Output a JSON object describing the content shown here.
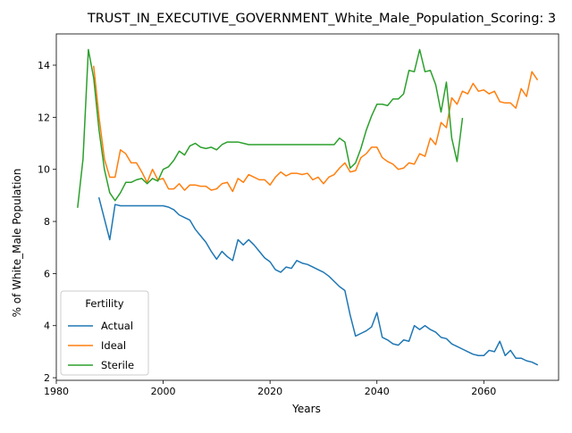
{
  "chart_data": {
    "type": "line",
    "title": "TRUST_IN_EXECUTIVE_GOVERNMENT_White_Male_Population_Scoring: 3",
    "xlabel": "Years",
    "ylabel": "% of White_Male Population",
    "xlim": [
      1980,
      2074
    ],
    "ylim": [
      1.9,
      15.2
    ],
    "xticks": [
      1980,
      2000,
      2020,
      2040,
      2060
    ],
    "yticks": [
      2,
      4,
      6,
      8,
      10,
      12,
      14
    ],
    "grid": false,
    "legend": {
      "title": "Fertility",
      "placement": "lower-left"
    },
    "series": [
      {
        "name": "Actual",
        "color": "#1f77b4",
        "x": [
          1988,
          1990,
          1991,
          1992,
          1994,
          1996,
          1998,
          2000,
          2001,
          2002,
          2003,
          2004,
          2005,
          2006,
          2007,
          2008,
          2009,
          2010,
          2011,
          2012,
          2013,
          2014,
          2015,
          2016,
          2017,
          2018,
          2019,
          2020,
          2021,
          2022,
          2023,
          2024,
          2025,
          2026,
          2027,
          2028,
          2029,
          2030,
          2031,
          2032,
          2033,
          2034,
          2035,
          2036,
          2037,
          2038,
          2039,
          2040,
          2041,
          2042,
          2043,
          2044,
          2045,
          2046,
          2047,
          2048,
          2049,
          2050,
          2051,
          2052,
          2053,
          2054,
          2055,
          2056,
          2057,
          2058,
          2059,
          2060,
          2061,
          2062,
          2063,
          2064,
          2065,
          2066,
          2067,
          2068,
          2069,
          2070
        ],
        "values": [
          8.9,
          7.3,
          8.65,
          8.6,
          8.6,
          8.6,
          8.6,
          8.6,
          8.55,
          8.45,
          8.25,
          8.15,
          8.05,
          7.7,
          7.45,
          7.2,
          6.85,
          6.55,
          6.85,
          6.65,
          6.5,
          7.3,
          7.1,
          7.3,
          7.1,
          6.85,
          6.6,
          6.45,
          6.15,
          6.05,
          6.25,
          6.2,
          6.5,
          6.4,
          6.35,
          6.25,
          6.15,
          6.05,
          5.9,
          5.7,
          5.5,
          5.35,
          4.4,
          3.6,
          3.7,
          3.8,
          3.95,
          4.5,
          3.55,
          3.45,
          3.3,
          3.25,
          3.45,
          3.4,
          4.0,
          3.85,
          4.0,
          3.85,
          3.75,
          3.55,
          3.5,
          3.3,
          3.2,
          3.1,
          3.0,
          2.9,
          2.85,
          2.85,
          3.05,
          3.0,
          3.4,
          2.85,
          3.05,
          2.75,
          2.75,
          2.65,
          2.6,
          2.5
        ]
      },
      {
        "name": "Ideal",
        "color": "#ff7f0e",
        "x": [
          1987,
          1988,
          1989,
          1990,
          1991,
          1992,
          1993,
          1994,
          1995,
          1996,
          1997,
          1998,
          1999,
          2000,
          2001,
          2002,
          2003,
          2004,
          2005,
          2006,
          2007,
          2008,
          2009,
          2010,
          2011,
          2012,
          2013,
          2014,
          2015,
          2016,
          2017,
          2018,
          2019,
          2020,
          2021,
          2022,
          2023,
          2024,
          2025,
          2026,
          2027,
          2028,
          2029,
          2030,
          2031,
          2032,
          2033,
          2034,
          2035,
          2036,
          2037,
          2038,
          2039,
          2040,
          2041,
          2042,
          2043,
          2044,
          2045,
          2046,
          2047,
          2048,
          2049,
          2050,
          2051,
          2052,
          2053,
          2054,
          2055,
          2056,
          2057,
          2058,
          2059,
          2060,
          2061,
          2062,
          2063,
          2064,
          2065,
          2066,
          2067,
          2068,
          2069,
          2070
        ],
        "values": [
          13.95,
          12.0,
          10.4,
          9.7,
          9.7,
          10.75,
          10.6,
          10.25,
          10.25,
          9.9,
          9.5,
          10.0,
          9.6,
          9.65,
          9.25,
          9.25,
          9.45,
          9.2,
          9.4,
          9.4,
          9.35,
          9.35,
          9.2,
          9.25,
          9.45,
          9.5,
          9.15,
          9.65,
          9.5,
          9.8,
          9.7,
          9.6,
          9.6,
          9.4,
          9.7,
          9.9,
          9.75,
          9.85,
          9.85,
          9.8,
          9.85,
          9.6,
          9.7,
          9.45,
          9.7,
          9.8,
          10.05,
          10.25,
          9.9,
          9.95,
          10.45,
          10.6,
          10.85,
          10.85,
          10.45,
          10.3,
          10.2,
          10.0,
          10.05,
          10.25,
          10.2,
          10.6,
          10.5,
          11.2,
          10.95,
          11.8,
          11.6,
          12.75,
          12.5,
          13.0,
          12.9,
          13.3,
          13.0,
          13.05,
          12.9,
          13.0,
          12.6,
          12.55,
          12.55,
          12.35,
          13.1,
          12.8,
          13.75,
          13.45
        ]
      },
      {
        "name": "Sterile",
        "color": "#2ca02c",
        "x": [
          1984,
          1985,
          1986,
          1987,
          1988,
          1989,
          1990,
          1991,
          1992,
          1993,
          1994,
          1995,
          1996,
          1997,
          1998,
          1999,
          2000,
          2001,
          2002,
          2003,
          2004,
          2005,
          2006,
          2007,
          2008,
          2009,
          2010,
          2011,
          2012,
          2013,
          2014,
          2015,
          2016,
          2017,
          2018,
          2019,
          2020,
          2021,
          2022,
          2023,
          2024,
          2025,
          2026,
          2027,
          2028,
          2029,
          2030,
          2031,
          2032,
          2033,
          2034,
          2035,
          2036,
          2037,
          2038,
          2039,
          2040,
          2041,
          2042,
          2043,
          2044,
          2045,
          2046,
          2047,
          2048,
          2049,
          2050,
          2051,
          2052,
          2053,
          2054,
          2055,
          2056
        ],
        "values": [
          8.55,
          10.4,
          14.6,
          13.5,
          11.5,
          10.0,
          9.1,
          8.8,
          9.1,
          9.5,
          9.5,
          9.6,
          9.65,
          9.45,
          9.65,
          9.55,
          10.0,
          10.1,
          10.35,
          10.7,
          10.55,
          10.9,
          11.0,
          10.85,
          10.8,
          10.85,
          10.75,
          10.95,
          11.05,
          11.05,
          11.05,
          11.0,
          10.95,
          10.95,
          10.95,
          10.95,
          10.95,
          10.95,
          10.95,
          10.95,
          10.95,
          10.95,
          10.95,
          10.95,
          10.95,
          10.95,
          10.95,
          10.95,
          10.95,
          11.2,
          11.05,
          10.05,
          10.25,
          10.8,
          11.5,
          12.05,
          12.5,
          12.5,
          12.45,
          12.7,
          12.7,
          12.9,
          13.8,
          13.75,
          14.6,
          13.75,
          13.8,
          13.25,
          12.2,
          13.35,
          11.2,
          10.3,
          11.95
        ]
      }
    ]
  }
}
